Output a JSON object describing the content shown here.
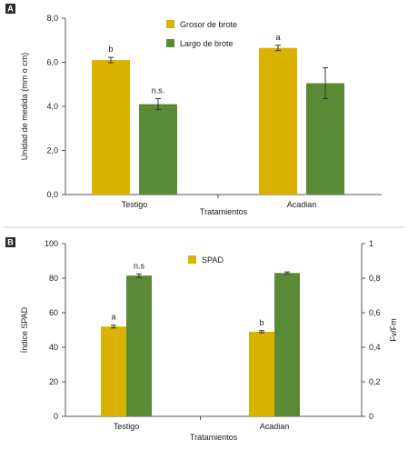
{
  "chart_data": [
    {
      "type": "bar",
      "panel_label": "A",
      "categories": [
        "Testigo",
        "Acadian"
      ],
      "series": [
        {
          "name": "Grosor de brote",
          "color": "#d9b300",
          "values": [
            6.1,
            6.65
          ],
          "errors": [
            0.12,
            0.12
          ],
          "labels": [
            "b",
            "a"
          ]
        },
        {
          "name": "Largo de brote",
          "color": "#5a8a35",
          "values": [
            4.1,
            5.05
          ],
          "errors": [
            0.25,
            0.7
          ],
          "labels": [
            "n.s.",
            ""
          ]
        }
      ],
      "xlabel": "Tratamientos",
      "ylabel": "Unidad de medida (mm o cm)",
      "ylim": [
        0,
        8
      ],
      "yticks": [
        "0,0",
        "2,0",
        "4,0",
        "6,0",
        "8,0"
      ],
      "grid": false,
      "legend_placement": "top-center"
    },
    {
      "type": "bar",
      "panel_label": "B",
      "categories": [
        "Testigo",
        "Acadian"
      ],
      "series": [
        {
          "name": "SPAD",
          "color": "#d9b300",
          "axis": "left",
          "values": [
            52,
            49
          ],
          "errors": [
            0.8,
            0.6
          ],
          "labels": [
            "a",
            "b"
          ]
        },
        {
          "name": "",
          "color": "#5a8a35",
          "axis": "right",
          "values": [
            0.815,
            0.83
          ],
          "errors": [
            0.01,
            0.006
          ],
          "labels": [
            "n.s",
            ""
          ]
        }
      ],
      "xlabel": "Tratamientos",
      "ylabel": "Índice SPAD",
      "y2label": "Fv/Fm",
      "ylim": [
        0,
        100
      ],
      "yticks": [
        "0",
        "20",
        "40",
        "60",
        "80",
        "100"
      ],
      "y2lim": [
        0,
        1
      ],
      "y2ticks": [
        "0",
        "0,2",
        "0,4",
        "0,6",
        "0,8",
        "1"
      ],
      "grid": false,
      "legend_placement": "top-center"
    }
  ]
}
